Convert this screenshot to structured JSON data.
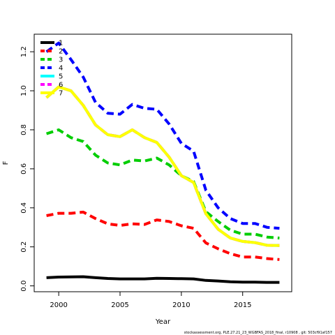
{
  "chart_data": {
    "type": "line",
    "xlabel": "Year",
    "ylabel": "F",
    "xlim": [
      1998,
      2019
    ],
    "ylim": [
      -0.03,
      1.29
    ],
    "xticks": [
      2000,
      2005,
      2010,
      2015
    ],
    "yticks": [
      0.0,
      0.2,
      0.4,
      0.6,
      0.8,
      1.0,
      1.2
    ],
    "legend_position": "top-left",
    "grid": false,
    "x": [
      1999,
      2000,
      2001,
      2002,
      2003,
      2004,
      2005,
      2006,
      2007,
      2008,
      2009,
      2010,
      2011,
      2012,
      2013,
      2014,
      2015,
      2016,
      2017,
      2018
    ],
    "series": [
      {
        "name": "1",
        "color": "#000000",
        "dash": "solid",
        "values": [
          0.042,
          0.045,
          0.046,
          0.047,
          0.042,
          0.038,
          0.036,
          0.036,
          0.036,
          0.039,
          0.038,
          0.037,
          0.036,
          0.028,
          0.025,
          0.021,
          0.019,
          0.019,
          0.018,
          0.018
        ]
      },
      {
        "name": "2",
        "color": "#ff0000",
        "dash": "dashed",
        "values": [
          0.36,
          0.372,
          0.372,
          0.378,
          0.345,
          0.318,
          0.31,
          0.318,
          0.315,
          0.338,
          0.33,
          0.308,
          0.295,
          0.22,
          0.19,
          0.165,
          0.148,
          0.148,
          0.14,
          0.135
        ]
      },
      {
        "name": "3",
        "color": "#00cd00",
        "dash": "dashed",
        "values": [
          0.78,
          0.8,
          0.76,
          0.74,
          0.67,
          0.63,
          0.62,
          0.645,
          0.64,
          0.655,
          0.62,
          0.565,
          0.535,
          0.38,
          0.33,
          0.285,
          0.265,
          0.265,
          0.25,
          0.245
        ]
      },
      {
        "name": "4",
        "color": "#0000ff",
        "dash": "dashed",
        "values": [
          1.2,
          1.245,
          1.16,
          1.07,
          0.94,
          0.885,
          0.88,
          0.93,
          0.91,
          0.905,
          0.83,
          0.73,
          0.69,
          0.49,
          0.4,
          0.345,
          0.32,
          0.32,
          0.3,
          0.295
        ]
      },
      {
        "name": "5",
        "color": "#00ffff",
        "dash": "solid",
        "values": [
          0.965,
          1.02,
          1.0,
          0.925,
          0.825,
          0.775,
          0.765,
          0.8,
          0.76,
          0.735,
          0.66,
          0.565,
          0.53,
          0.37,
          0.29,
          0.245,
          0.228,
          0.222,
          0.208,
          0.207
        ]
      },
      {
        "name": "6",
        "color": "#ff00ff",
        "dash": "dashed",
        "values": [
          0.965,
          1.02,
          1.0,
          0.925,
          0.825,
          0.775,
          0.765,
          0.8,
          0.76,
          0.735,
          0.66,
          0.565,
          0.53,
          0.37,
          0.29,
          0.245,
          0.228,
          0.222,
          0.208,
          0.207
        ]
      },
      {
        "name": "7",
        "color": "#ffff00",
        "dash": "solid",
        "values": [
          0.965,
          1.02,
          1.0,
          0.925,
          0.825,
          0.775,
          0.765,
          0.8,
          0.76,
          0.735,
          0.66,
          0.565,
          0.53,
          0.37,
          0.29,
          0.245,
          0.228,
          0.222,
          0.208,
          0.207
        ]
      }
    ]
  },
  "footer_text": "stockassessment.org, PLE.27.21_23_WGBFAS_2018_final, r10908 , git: 503cf91af157"
}
